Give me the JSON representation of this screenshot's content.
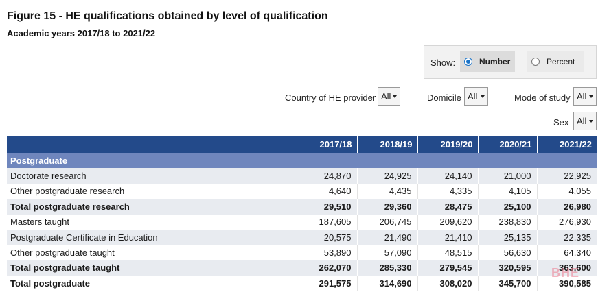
{
  "title": "Figure 15 - HE qualifications obtained by level of qualification",
  "subtitle": "Academic years 2017/18 to 2021/22",
  "show": {
    "label": "Show:",
    "options": [
      {
        "label": "Number",
        "selected": true
      },
      {
        "label": "Percent",
        "selected": false
      }
    ]
  },
  "filters": {
    "country": {
      "label": "Country of HE provider",
      "value": "All"
    },
    "domicile": {
      "label": "Domicile",
      "value": "All"
    },
    "mode": {
      "label": "Mode of study",
      "value": "All"
    },
    "sex": {
      "label": "Sex",
      "value": "All"
    }
  },
  "table": {
    "headers": [
      "",
      "2017/18",
      "2018/19",
      "2019/20",
      "2020/21",
      "2021/22"
    ],
    "section": "Postgraduate",
    "rows": [
      {
        "label": "Doctorate research",
        "values": [
          "24,870",
          "24,925",
          "24,140",
          "21,000",
          "22,925"
        ],
        "total": false
      },
      {
        "label": "Other postgraduate research",
        "values": [
          "4,640",
          "4,435",
          "4,335",
          "4,105",
          "4,055"
        ],
        "total": false
      },
      {
        "label": "Total postgraduate research",
        "values": [
          "29,510",
          "29,360",
          "28,475",
          "25,100",
          "26,980"
        ],
        "total": true
      },
      {
        "label": "Masters taught",
        "values": [
          "187,605",
          "206,745",
          "209,620",
          "238,830",
          "276,930"
        ],
        "total": false
      },
      {
        "label": "Postgraduate Certificate in Education",
        "values": [
          "20,575",
          "21,490",
          "21,410",
          "25,135",
          "22,335"
        ],
        "total": false
      },
      {
        "label": "Other postgraduate taught",
        "values": [
          "53,890",
          "57,090",
          "48,515",
          "56,630",
          "64,340"
        ],
        "total": false
      },
      {
        "label": "Total postgraduate taught",
        "values": [
          "262,070",
          "285,330",
          "279,545",
          "320,595",
          "363,600"
        ],
        "total": true
      },
      {
        "label": "Total postgraduate",
        "values": [
          "291,575",
          "314,690",
          "308,020",
          "345,700",
          "390,585"
        ],
        "total": true
      }
    ]
  },
  "watermark": "BHE",
  "colors": {
    "header": "#234a8a",
    "section": "#6f86bd",
    "stripe": "#e8ebf0",
    "radio": "#1a73c8"
  }
}
